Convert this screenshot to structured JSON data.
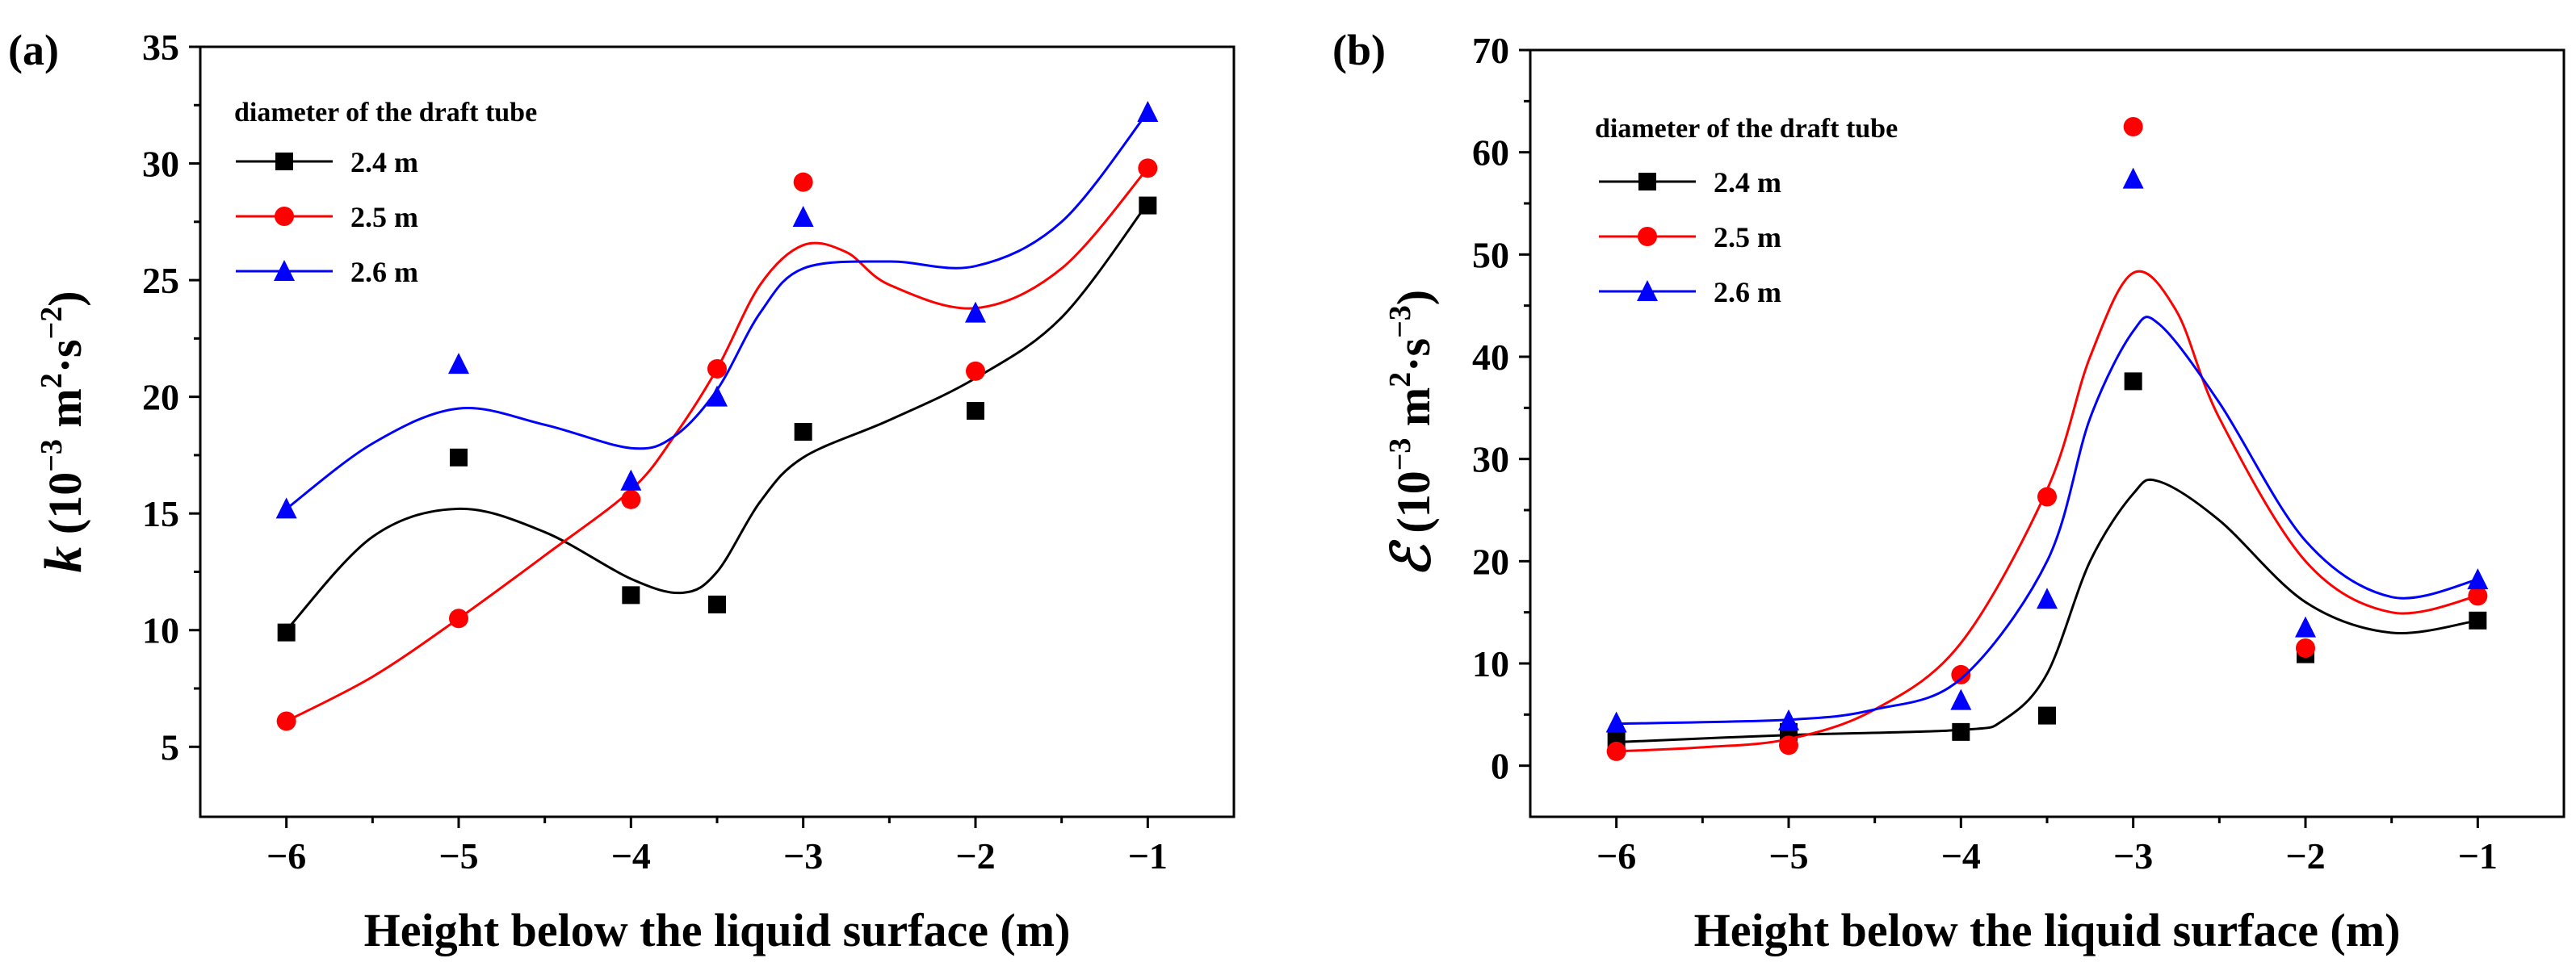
{
  "chart_data": [
    {
      "type": "scatter",
      "panel_tag": "(a)",
      "xlabel": "Height below the liquid surface (m)",
      "ylabel_parts": [
        "k",
        " (10",
        "−3",
        " m",
        "2",
        "·s",
        "−2",
        ")"
      ],
      "xlim": [
        -6.5,
        -0.5
      ],
      "ylim": [
        2,
        35
      ],
      "x_ticks": [
        -6,
        -5,
        -4,
        -3,
        -2,
        -1
      ],
      "x_tick_labels": [
        "−6",
        "−5",
        "−4",
        "−3",
        "−2",
        "−1"
      ],
      "y_ticks": [
        5,
        10,
        15,
        20,
        25,
        30,
        35
      ],
      "y_tick_labels": [
        "5",
        "10",
        "15",
        "20",
        "25",
        "30",
        "35"
      ],
      "legend_title": "diameter of the draft tube",
      "legend_position": "top-left",
      "series": [
        {
          "name": "2.4 m",
          "color": "#000000",
          "marker": "square",
          "x": [
            -6,
            -5,
            -4,
            -3.5,
            -3,
            -2,
            -1
          ],
          "values": [
            9.9,
            17.4,
            11.5,
            11.1,
            18.5,
            19.4,
            28.2
          ],
          "fit": [
            [
              -6,
              10.0
            ],
            [
              -5.5,
              14.0
            ],
            [
              -5,
              15.2
            ],
            [
              -4.5,
              14.2
            ],
            [
              -4,
              12.2
            ],
            [
              -3.7,
              11.6
            ],
            [
              -3.5,
              12.5
            ],
            [
              -3.25,
              15.5
            ],
            [
              -3,
              17.4
            ],
            [
              -2.5,
              19.0
            ],
            [
              -2,
              20.8
            ],
            [
              -1.5,
              23.4
            ],
            [
              -1,
              28.3
            ]
          ]
        },
        {
          "name": "2.5 m",
          "color": "#ff0000",
          "marker": "circle",
          "x": [
            -6,
            -5,
            -4,
            -3.5,
            -3,
            -2,
            -1
          ],
          "values": [
            6.1,
            10.5,
            15.6,
            21.2,
            29.2,
            21.1,
            29.8
          ],
          "fit": [
            [
              -6,
              6.1
            ],
            [
              -5.5,
              8.0
            ],
            [
              -5,
              10.5
            ],
            [
              -4.5,
              13.2
            ],
            [
              -4,
              16.0
            ],
            [
              -3.75,
              18.3
            ],
            [
              -3.5,
              21.2
            ],
            [
              -3.25,
              24.8
            ],
            [
              -3,
              26.5
            ],
            [
              -2.75,
              26.2
            ],
            [
              -2.5,
              24.8
            ],
            [
              -2,
              23.8
            ],
            [
              -1.5,
              25.5
            ],
            [
              -1,
              29.8
            ]
          ]
        },
        {
          "name": "2.6 m",
          "color": "#0000ff",
          "marker": "triangle",
          "x": [
            -6,
            -5,
            -4,
            -3.5,
            -3,
            -2,
            -1
          ],
          "values": [
            15.2,
            21.4,
            16.4,
            20.0,
            27.7,
            23.6,
            32.2
          ],
          "fit": [
            [
              -6,
              15.2
            ],
            [
              -5.5,
              18.0
            ],
            [
              -5,
              19.5
            ],
            [
              -4.5,
              18.8
            ],
            [
              -4,
              17.8
            ],
            [
              -3.75,
              18.3
            ],
            [
              -3.5,
              20.3
            ],
            [
              -3.25,
              23.6
            ],
            [
              -3,
              25.5
            ],
            [
              -2.5,
              25.8
            ],
            [
              -2,
              25.6
            ],
            [
              -1.5,
              27.5
            ],
            [
              -1,
              32.2
            ]
          ]
        }
      ]
    },
    {
      "type": "scatter",
      "panel_tag": "(b)",
      "xlabel": "Height below the liquid surface (m)",
      "ylabel_parts": [
        "ℰ",
        " (10",
        "−3",
        " m",
        "2",
        "·s",
        "−3",
        ")"
      ],
      "xlim": [
        -6.5,
        -0.5
      ],
      "ylim": [
        -5,
        70
      ],
      "x_ticks": [
        -6,
        -5,
        -4,
        -3,
        -2,
        -1
      ],
      "x_tick_labels": [
        "−6",
        "−5",
        "−4",
        "−3",
        "−2",
        "−1"
      ],
      "y_ticks": [
        0,
        10,
        20,
        30,
        40,
        50,
        60,
        70
      ],
      "y_tick_labels": [
        "0",
        "10",
        "20",
        "30",
        "40",
        "50",
        "60",
        "70"
      ],
      "legend_title": "diameter of the draft tube",
      "legend_position": "top-left",
      "series": [
        {
          "name": "2.4 m",
          "color": "#000000",
          "marker": "square",
          "x": [
            -6,
            -5,
            -4,
            -3.5,
            -3,
            -2,
            -1
          ],
          "values": [
            2.5,
            3.3,
            3.3,
            4.9,
            37.6,
            10.9,
            14.2
          ],
          "fit": [
            [
              -6,
              2.3
            ],
            [
              -5,
              3.0
            ],
            [
              -4,
              3.5
            ],
            [
              -3.75,
              4.5
            ],
            [
              -3.5,
              9.0
            ],
            [
              -3.25,
              20.0
            ],
            [
              -3,
              26.6
            ],
            [
              -2.85,
              27.8
            ],
            [
              -2.5,
              24.0
            ],
            [
              -2,
              16.0
            ],
            [
              -1.5,
              13.0
            ],
            [
              -1,
              14.2
            ]
          ]
        },
        {
          "name": "2.5 m",
          "color": "#ff0000",
          "marker": "circle",
          "x": [
            -6,
            -5,
            -4,
            -3.5,
            -3,
            -2,
            -1
          ],
          "values": [
            1.4,
            2.0,
            8.9,
            26.3,
            62.5,
            11.5,
            16.6
          ],
          "fit": [
            [
              -6,
              1.4
            ],
            [
              -5.5,
              1.8
            ],
            [
              -5,
              2.6
            ],
            [
              -4.5,
              5.5
            ],
            [
              -4,
              12.0
            ],
            [
              -3.5,
              27.0
            ],
            [
              -3.25,
              40.0
            ],
            [
              -3,
              48.2
            ],
            [
              -2.75,
              44.5
            ],
            [
              -2.5,
              34.0
            ],
            [
              -2,
              20.0
            ],
            [
              -1.5,
              15.0
            ],
            [
              -1,
              16.6
            ]
          ]
        },
        {
          "name": "2.6 m",
          "color": "#0000ff",
          "marker": "triangle",
          "x": [
            -6,
            -5,
            -4,
            -3.5,
            -3,
            -2,
            -1
          ],
          "values": [
            4.2,
            4.4,
            6.4,
            16.3,
            57.4,
            13.5,
            18.2
          ],
          "fit": [
            [
              -6,
              4.1
            ],
            [
              -5,
              4.5
            ],
            [
              -4.5,
              5.5
            ],
            [
              -4,
              8.5
            ],
            [
              -3.5,
              20.0
            ],
            [
              -3.25,
              34.0
            ],
            [
              -3,
              42.5
            ],
            [
              -2.85,
              43.2
            ],
            [
              -2.5,
              35.5
            ],
            [
              -2,
              22.0
            ],
            [
              -1.5,
              16.5
            ],
            [
              -1,
              18.2
            ]
          ]
        }
      ]
    }
  ]
}
